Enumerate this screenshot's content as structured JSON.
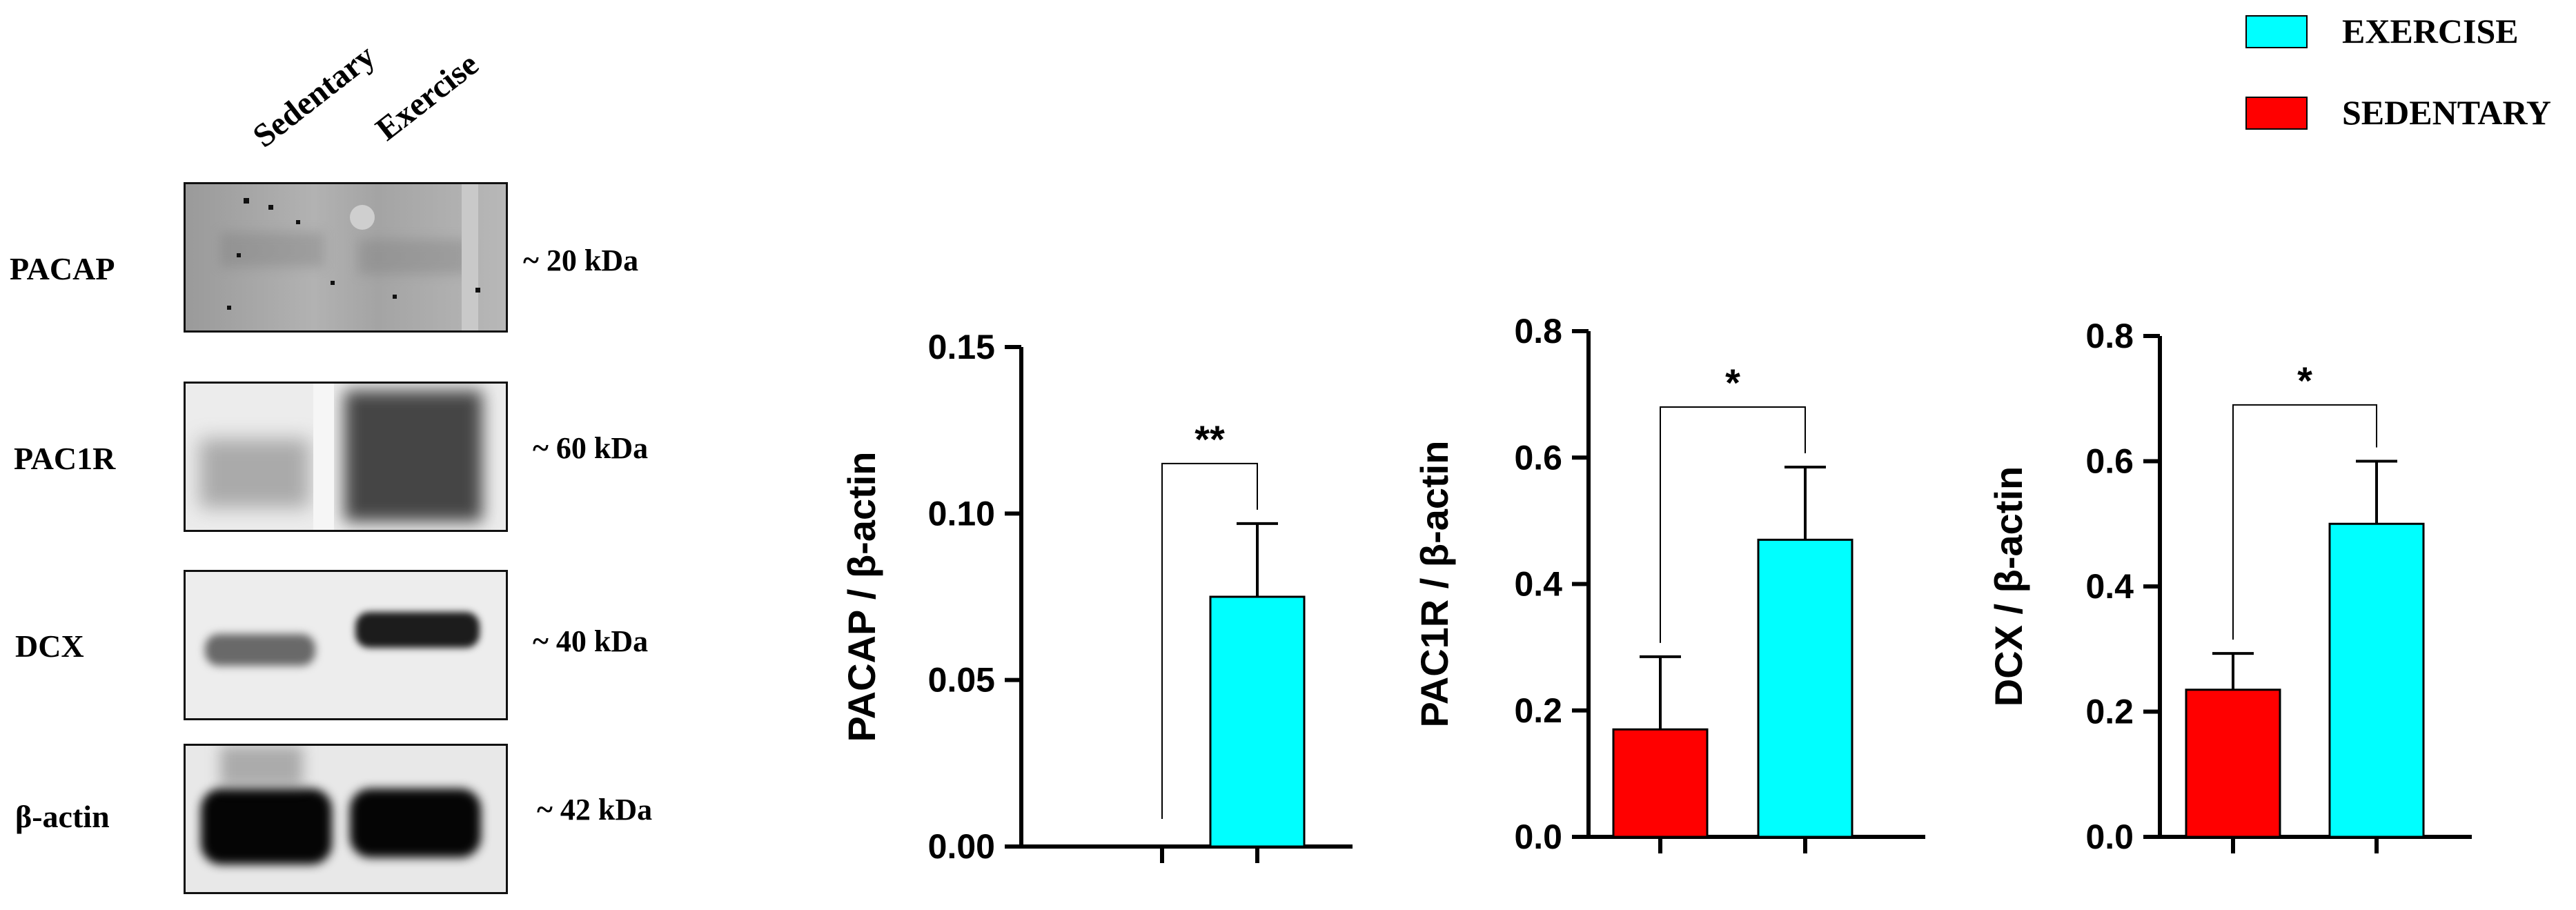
{
  "western_blot": {
    "lanes": [
      "Sedentary",
      "Exercise"
    ],
    "rows": [
      {
        "protein": "PACAP",
        "size": "~ 20 kDa"
      },
      {
        "protein": "PAC1R",
        "size": "~ 60 kDa"
      },
      {
        "protein": "DCX",
        "size": "~ 40 kDa"
      },
      {
        "protein": "β-actin",
        "size": "~ 42 kDa"
      }
    ]
  },
  "legend": {
    "items": [
      {
        "label": "EXERCISE",
        "color": "#00FFFF"
      },
      {
        "label": "SEDENTARY",
        "color": "#FF0000"
      }
    ]
  },
  "colors": {
    "sedentary": "#FF0000",
    "exercise": "#00FFFF",
    "outline": "#000000"
  },
  "chart_data": [
    {
      "type": "bar",
      "categories": [
        "Sedentary",
        "Exercise"
      ],
      "values": [
        0.0,
        0.075
      ],
      "errors": [
        0.0,
        0.022
      ],
      "ylabel": "PACAP / β-actin",
      "ylim": [
        0,
        0.15
      ],
      "yticks": [
        0.0,
        0.05,
        0.1,
        0.15
      ],
      "ytick_labels": [
        "0.00",
        "0.05",
        "0.10",
        "0.15"
      ],
      "significance": "**",
      "sig_level": 0.115
    },
    {
      "type": "bar",
      "categories": [
        "Sedentary",
        "Exercise"
      ],
      "values": [
        0.17,
        0.47
      ],
      "errors": [
        0.115,
        0.115
      ],
      "ylabel": "PAC1R / β-actin",
      "ylim": [
        0,
        0.8
      ],
      "yticks": [
        0.0,
        0.2,
        0.4,
        0.6,
        0.8
      ],
      "ytick_labels": [
        "0.0",
        "0.2",
        "0.4",
        "0.6",
        "0.8"
      ],
      "significance": "*",
      "sig_level": 0.68
    },
    {
      "type": "bar",
      "categories": [
        "Sedentary",
        "Exercise"
      ],
      "values": [
        0.235,
        0.5
      ],
      "errors": [
        0.058,
        0.1
      ],
      "ylabel": "DCX / β-actin",
      "ylim": [
        0,
        0.8
      ],
      "yticks": [
        0.0,
        0.2,
        0.4,
        0.6,
        0.8
      ],
      "ytick_labels": [
        "0.0",
        "0.2",
        "0.4",
        "0.6",
        "0.8"
      ],
      "significance": "*",
      "sig_level": 0.69
    }
  ]
}
